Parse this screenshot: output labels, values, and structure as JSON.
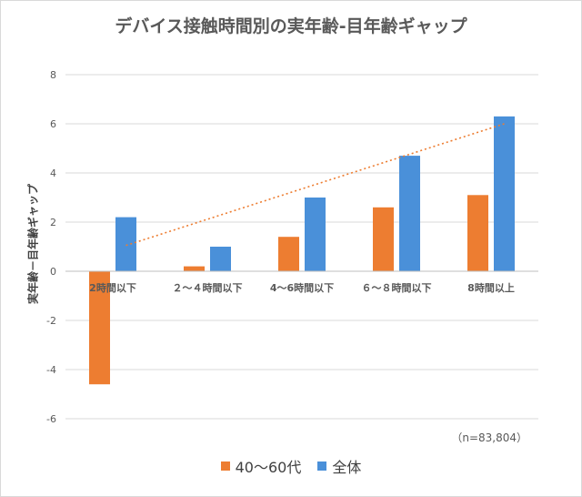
{
  "chart_data": {
    "type": "bar",
    "title": "デバイス接触時間別の実年齢-目年齢ギャップ",
    "xlabel": "",
    "ylabel": "実年齢－目年齢ギャップ",
    "categories": [
      "2時間以下",
      "２～４時間以下",
      "4～6時間以下",
      "６～８時間以下",
      "8時間以上"
    ],
    "series": [
      {
        "name": "40～60代",
        "color": "#ED7D31",
        "values": [
          -4.6,
          0.2,
          1.4,
          2.6,
          3.1
        ]
      },
      {
        "name": "全体",
        "color": "#4A90D9",
        "values": [
          2.2,
          1.0,
          3.0,
          4.7,
          6.3
        ]
      }
    ],
    "trendline": {
      "series": "全体",
      "style": "dotted",
      "color": "#ED7D31",
      "start": 1.05,
      "end": 6.0
    },
    "ylim": [
      -6,
      8
    ],
    "yticks": [
      -6,
      -4,
      -2,
      0,
      2,
      4,
      6,
      8
    ],
    "grid": true,
    "legend": "bottom",
    "note": "（n=83,804）"
  }
}
